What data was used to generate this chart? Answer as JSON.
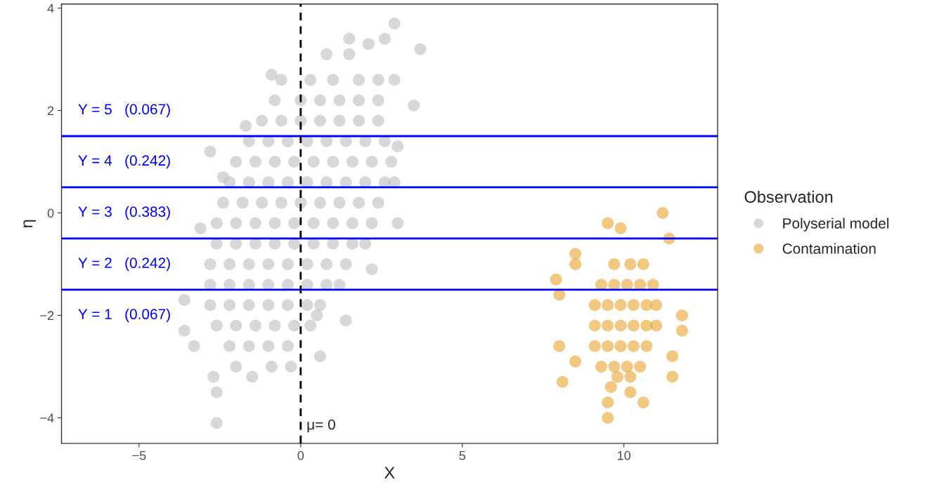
{
  "chart_data": {
    "type": "scatter",
    "xlabel": "X",
    "ylabel": "η",
    "legend_title": "Observation",
    "legend": "right",
    "grid": false,
    "marker": "circle",
    "xlim": [
      -7.4,
      12.9
    ],
    "ylim": [
      -4.5,
      4.08
    ],
    "xticks": [
      {
        "value": -5,
        "label": "−5"
      },
      0,
      5,
      10
    ],
    "yticks": [
      {
        "value": -4,
        "label": "−4"
      },
      {
        "value": -2,
        "label": "−2"
      },
      0,
      2,
      4
    ],
    "ref_lines": [
      {
        "axis": "y",
        "value": 1.5,
        "color": "#0000ff",
        "line_style": "solid"
      },
      {
        "axis": "y",
        "value": 0.5,
        "color": "#0000ff",
        "line_style": "solid"
      },
      {
        "axis": "y",
        "value": -0.5,
        "color": "#0000ff",
        "line_style": "solid"
      },
      {
        "axis": "y",
        "value": -1.5,
        "color": "#0000ff",
        "line_style": "solid"
      },
      {
        "axis": "x",
        "value": 0,
        "color": "#000000",
        "line_style": "dashed"
      }
    ],
    "annotations": [
      "Y = 5   (0.067)",
      "Y = 4   (0.242)",
      "Y = 3   (0.383)",
      "Y = 2   (0.242)",
      "Y = 1   (0.067)",
      "μ= 0"
    ],
    "series": [
      {
        "name": "Polyserial model",
        "color": "#bebebe",
        "x": [
          3.7,
          2.9,
          2.6,
          1.5,
          1.5,
          0.8,
          2.1,
          -0.9,
          3.5,
          2.9,
          -2.6,
          -2.6,
          -2.7,
          -3.3,
          -3.6,
          -3.1,
          -3.6,
          -2.8,
          -2.4,
          -1.7,
          0.6,
          1.4,
          2.2,
          3.0,
          2.9,
          3.0,
          -0.3,
          0.5,
          -1.5,
          -2.0,
          -0.9,
          -0.6,
          0.3,
          1.0,
          1.8,
          2.4,
          -0.8,
          0,
          0.6,
          1.2,
          1.8,
          2.4,
          -1.2,
          -0.6,
          0,
          0.6,
          1.2,
          1.8,
          2.4,
          -1.6,
          -1.0,
          -0.4,
          0.2,
          0.8,
          1.4,
          2.0,
          2.6,
          -2.0,
          -1.4,
          -0.8,
          -0.2,
          0.4,
          1.0,
          1.6,
          2.2,
          2.8,
          -2.2,
          -1.6,
          -1.0,
          -0.4,
          0.2,
          0.8,
          1.4,
          2.0,
          2.6,
          -2.4,
          -1.8,
          -1.2,
          -0.6,
          0,
          0.6,
          1.2,
          1.8,
          2.4,
          -2.6,
          -2.0,
          -1.4,
          -0.8,
          -0.2,
          0.4,
          1.0,
          1.6,
          2.2,
          -2.6,
          -2.0,
          -1.4,
          -0.8,
          -0.2,
          0.4,
          1.0,
          1.6,
          2.0,
          -2.8,
          -2.2,
          -1.6,
          -1.0,
          -0.4,
          0.2,
          0.8,
          1.4,
          -2.8,
          -2.2,
          -1.6,
          -1.0,
          -0.4,
          0.2,
          0.8,
          1.2,
          -2.8,
          -2.2,
          -1.6,
          -1.0,
          -0.4,
          0.2,
          0.6,
          -2.6,
          -2.0,
          -1.4,
          -0.8,
          -0.2,
          0.3,
          -2.2,
          -1.6,
          -1.0,
          -0.4
        ],
        "values": [
          3.2,
          3.7,
          3.4,
          3.4,
          3.1,
          3.1,
          3.3,
          2.7,
          2.1,
          2.6,
          -4.1,
          -3.5,
          -3.2,
          -2.6,
          -2.3,
          -0.3,
          -1.7,
          1.2,
          0.7,
          1.7,
          -2.8,
          -2.1,
          -1.1,
          -0.2,
          0.6,
          1.3,
          -3.0,
          -2.0,
          -3.2,
          -3.0,
          -3.0,
          2.6,
          2.6,
          2.6,
          2.6,
          2.6,
          2.2,
          2.2,
          2.2,
          2.2,
          2.2,
          2.2,
          1.8,
          1.8,
          1.8,
          1.8,
          1.8,
          1.8,
          1.8,
          1.4,
          1.4,
          1.4,
          1.4,
          1.4,
          1.4,
          1.4,
          1.4,
          1.0,
          1.0,
          1.0,
          1.0,
          1.0,
          1.0,
          1.0,
          1.0,
          1.0,
          0.6,
          0.6,
          0.6,
          0.6,
          0.6,
          0.6,
          0.6,
          0.6,
          0.6,
          0.2,
          0.2,
          0.2,
          0.2,
          0.2,
          0.2,
          0.2,
          0.2,
          0.2,
          -0.2,
          -0.2,
          -0.2,
          -0.2,
          -0.2,
          -0.2,
          -0.2,
          -0.2,
          -0.2,
          -0.6,
          -0.6,
          -0.6,
          -0.6,
          -0.6,
          -0.6,
          -0.6,
          -0.6,
          -0.6,
          -1.0,
          -1.0,
          -1.0,
          -1.0,
          -1.0,
          -1.0,
          -1.0,
          -1.0,
          -1.4,
          -1.4,
          -1.4,
          -1.4,
          -1.4,
          -1.4,
          -1.4,
          -1.4,
          -1.8,
          -1.8,
          -1.8,
          -1.8,
          -1.8,
          -1.8,
          -1.8,
          -2.2,
          -2.2,
          -2.2,
          -2.2,
          -2.2,
          -2.2,
          -2.6,
          -2.6,
          -2.6,
          -2.6
        ]
      },
      {
        "name": "Contamination",
        "color": "#e8a530",
        "x": [
          11.2,
          9.5,
          9.9,
          8.5,
          8.5,
          7.9,
          8.0,
          8.0,
          8.1,
          11.8,
          11.8,
          11.5,
          11.5,
          10.6,
          9.5,
          9.5,
          9.6,
          10.2,
          11.4,
          8.5,
          9.7,
          10.2,
          10.6,
          9.3,
          9.7,
          10.1,
          10.5,
          10.9,
          9.1,
          9.5,
          9.9,
          10.3,
          10.7,
          11.0,
          9.1,
          9.5,
          9.9,
          10.3,
          10.7,
          11.0,
          9.1,
          9.5,
          9.9,
          10.3,
          10.7,
          9.3,
          9.7,
          10.1,
          10.5,
          9.8,
          10.2
        ],
        "values": [
          0.0,
          -0.2,
          -0.3,
          -0.8,
          -1.0,
          -1.3,
          -1.6,
          -2.6,
          -3.3,
          -2.0,
          -2.3,
          -2.8,
          -3.2,
          -3.7,
          -3.7,
          -4.0,
          -3.4,
          -3.5,
          -0.5,
          -2.9,
          -1.0,
          -1.0,
          -1.0,
          -1.4,
          -1.4,
          -1.4,
          -1.4,
          -1.4,
          -1.8,
          -1.8,
          -1.8,
          -1.8,
          -1.8,
          -1.8,
          -2.2,
          -2.2,
          -2.2,
          -2.2,
          -2.2,
          -2.2,
          -2.6,
          -2.6,
          -2.6,
          -2.6,
          -2.6,
          -3.0,
          -3.0,
          -3.0,
          -3.0,
          -3.2,
          -3.2
        ]
      }
    ]
  }
}
